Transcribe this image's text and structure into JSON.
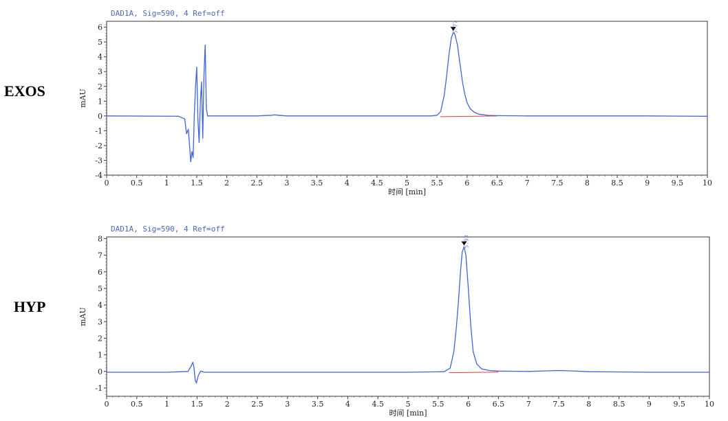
{
  "labels": {
    "exos": "EXOS",
    "hyp": "HYP"
  },
  "chart_data": [
    {
      "type": "line",
      "sample": "EXOS",
      "signal_label": "DAD1A, Sig=590, 4   Ref=off",
      "xlabel": "时间 [min]",
      "ylabel": "mAU",
      "xlim": [
        0,
        10
      ],
      "ylim": [
        -4,
        6.4
      ],
      "xticks": [
        0,
        0.5,
        1,
        1.5,
        2,
        2.5,
        3,
        3.5,
        4,
        4.5,
        5,
        5.5,
        6,
        6.5,
        7,
        7.5,
        8,
        8.5,
        9,
        9.5,
        10
      ],
      "xtick_labels": [
        "0",
        "0.5",
        "1",
        "1.5",
        "2",
        "2.5",
        "3",
        "3.5",
        "4",
        "4.5",
        "5",
        "5.5",
        "6",
        "6.5",
        "7",
        "7.5",
        "8",
        "8.5",
        "9",
        "9.5",
        "10"
      ],
      "yticks": [
        -4,
        -3,
        -2,
        -1,
        0,
        1,
        2,
        3,
        4,
        5,
        6
      ],
      "series_color": "#3f63d8",
      "baseline_color": "#e23b3b",
      "series": [
        {
          "x": [
            0,
            1.2,
            1.3,
            1.33,
            1.36,
            1.38,
            1.4,
            1.42,
            1.44,
            1.46,
            1.48,
            1.5,
            1.52,
            1.54,
            1.56,
            1.58,
            1.6,
            1.62,
            1.64,
            1.66,
            1.68,
            1.7,
            1.72,
            1.76,
            1.85,
            2.0,
            2.5,
            2.75,
            2.8,
            2.85,
            3.0,
            4.0,
            5.0,
            5.4,
            5.5,
            5.56,
            5.62,
            5.66,
            5.7,
            5.74,
            5.77,
            5.8,
            5.84,
            5.88,
            5.92,
            5.96,
            6.0,
            6.05,
            6.12,
            6.2,
            6.35,
            6.5,
            7.0,
            8.0,
            9.0,
            10.0
          ],
          "y": [
            0,
            -0.02,
            -0.2,
            -1.2,
            -0.9,
            -2.0,
            -3.1,
            -2.4,
            -2.8,
            0.2,
            2.0,
            3.3,
            -0.3,
            -1.8,
            1.0,
            2.3,
            -1.5,
            2.8,
            4.8,
            0.5,
            0,
            0,
            0,
            0,
            0,
            0.0,
            0.0,
            0.05,
            0.08,
            0.05,
            0.0,
            0.0,
            0.0,
            0.0,
            0.05,
            0.3,
            1.4,
            2.7,
            4.2,
            5.3,
            5.65,
            5.5,
            4.8,
            3.6,
            2.4,
            1.5,
            0.9,
            0.5,
            0.25,
            0.12,
            0.04,
            0.02,
            0.0,
            0.0,
            0.0,
            -0.02
          ]
        }
      ],
      "baseline": {
        "x": [
          5.55,
          6.5
        ],
        "y": [
          -0.05,
          0.0
        ]
      },
      "peak": {
        "x": 5.77,
        "y": 5.65,
        "label": "5.77"
      }
    },
    {
      "type": "line",
      "sample": "HYP",
      "signal_label": "DAD1A, Sig=590, 4   Ref=off",
      "xlabel": "时间 [min]",
      "ylabel": "mAU",
      "xlim": [
        0,
        10
      ],
      "ylim": [
        -1.5,
        8.1
      ],
      "xticks": [
        0,
        0.5,
        1,
        1.5,
        2,
        2.5,
        3,
        3.5,
        4,
        4.5,
        5,
        5.5,
        6,
        6.5,
        7,
        7.5,
        8,
        8.5,
        9,
        9.5,
        10
      ],
      "xtick_labels": [
        "0",
        "0.5",
        "1",
        "1.5",
        "2",
        "2.5",
        "3",
        "3.5",
        "4",
        "4.5",
        "5",
        "5.5",
        "6",
        "6.5",
        "7",
        "7.5",
        "8",
        "8.5",
        "9",
        "9.5",
        "10"
      ],
      "yticks": [
        -1,
        0,
        1,
        2,
        3,
        4,
        5,
        6,
        7,
        8
      ],
      "series_color": "#3f63d8",
      "baseline_color": "#e23b3b",
      "series": [
        {
          "x": [
            0,
            1.0,
            1.35,
            1.4,
            1.43,
            1.45,
            1.47,
            1.49,
            1.52,
            1.56,
            1.62,
            1.8,
            3.0,
            5.0,
            5.6,
            5.7,
            5.76,
            5.8,
            5.84,
            5.87,
            5.9,
            5.93,
            5.96,
            6.0,
            6.04,
            6.08,
            6.14,
            6.22,
            6.35,
            6.5,
            7.0,
            7.3,
            7.5,
            7.7,
            8.0,
            9.0,
            10.0
          ],
          "y": [
            -0.05,
            -0.05,
            0.0,
            0.3,
            0.55,
            0.2,
            -0.55,
            -0.7,
            -0.25,
            0.02,
            -0.05,
            -0.05,
            -0.05,
            -0.05,
            -0.02,
            0.2,
            1.2,
            2.6,
            4.4,
            6.0,
            7.2,
            7.5,
            7.0,
            5.0,
            2.8,
            1.2,
            0.45,
            0.15,
            0.05,
            0.02,
            0.0,
            0.03,
            0.05,
            0.03,
            -0.02,
            -0.05,
            -0.05
          ]
        }
      ],
      "baseline": {
        "x": [
          5.68,
          6.5
        ],
        "y": [
          -0.08,
          -0.04
        ]
      },
      "peak": {
        "x": 5.93,
        "y": 7.5,
        "label": "5.93"
      }
    }
  ]
}
